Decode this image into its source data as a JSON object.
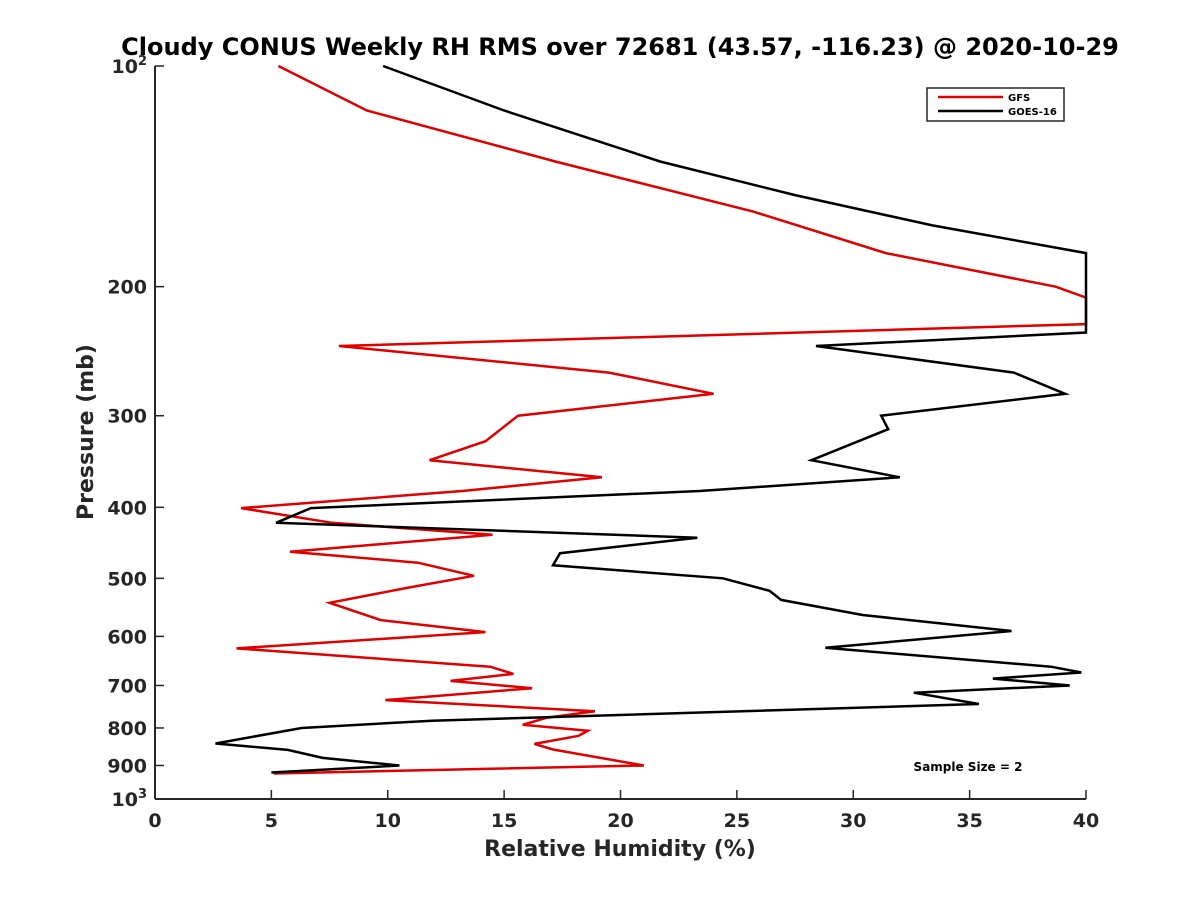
{
  "chart_data": {
    "type": "line",
    "title": "Cloudy CONUS Weekly RH RMS over 72681 (43.57, -116.23) @ 2020-10-29",
    "xlabel": "Relative Humidity (%)",
    "ylabel": "Pressure (mb)",
    "xlim": [
      0,
      40
    ],
    "ylim": [
      100,
      1000
    ],
    "y_scale": "log",
    "y_reversed": true,
    "grid": false,
    "x_ticks": [
      "0",
      "5",
      "10",
      "15",
      "20",
      "25",
      "30",
      "35",
      "40"
    ],
    "y_ticks": [
      {
        "value": 100,
        "base": "10",
        "exp": "2"
      },
      {
        "value": 200,
        "label": "200"
      },
      {
        "value": 300,
        "label": "300"
      },
      {
        "value": 400,
        "label": "400"
      },
      {
        "value": 500,
        "label": "500"
      },
      {
        "value": 600,
        "label": "600"
      },
      {
        "value": 700,
        "label": "700"
      },
      {
        "value": 800,
        "label": "800"
      },
      {
        "value": 900,
        "label": "900"
      },
      {
        "value": 1000,
        "base": "10",
        "exp": "3"
      }
    ],
    "legend": {
      "position": "top-right"
    },
    "annotation": "Sample Size = 2",
    "series": [
      {
        "name": "GFS",
        "color": "#e00000",
        "points": [
          [
            5.3,
            100
          ],
          [
            9.1,
            115
          ],
          [
            17.2,
            135
          ],
          [
            25.7,
            158
          ],
          [
            31.4,
            180
          ],
          [
            38.7,
            200
          ],
          [
            40.0,
            207
          ],
          [
            40.0,
            225
          ],
          [
            7.9,
            241
          ],
          [
            19.5,
            262
          ],
          [
            24.0,
            280
          ],
          [
            15.6,
            300
          ],
          [
            14.2,
            325
          ],
          [
            11.8,
            345
          ],
          [
            19.2,
            364
          ],
          [
            13.2,
            380
          ],
          [
            3.7,
            401
          ],
          [
            7.6,
            420
          ],
          [
            14.5,
            436
          ],
          [
            5.8,
            460
          ],
          [
            11.3,
            476
          ],
          [
            13.7,
            496
          ],
          [
            11.0,
            514
          ],
          [
            7.5,
            540
          ],
          [
            9.7,
            570
          ],
          [
            14.2,
            592
          ],
          [
            3.5,
            623
          ],
          [
            14.4,
            660
          ],
          [
            15.4,
            675
          ],
          [
            12.7,
            690
          ],
          [
            16.2,
            706
          ],
          [
            9.9,
            733
          ],
          [
            18.9,
            759
          ],
          [
            16.8,
            775
          ],
          [
            15.8,
            792
          ],
          [
            18.6,
            807
          ],
          [
            18.2,
            820
          ],
          [
            16.3,
            841
          ],
          [
            17.1,
            856
          ],
          [
            21.0,
            900
          ],
          [
            5.1,
            923
          ]
        ]
      },
      {
        "name": "GOES-16",
        "color": "#000000",
        "points": [
          [
            9.8,
            100
          ],
          [
            15.0,
            115
          ],
          [
            21.7,
            135
          ],
          [
            27.5,
            150
          ],
          [
            33.4,
            165
          ],
          [
            40.0,
            180
          ],
          [
            40.0,
            231
          ],
          [
            28.4,
            241
          ],
          [
            36.9,
            262
          ],
          [
            39.1,
            280
          ],
          [
            31.2,
            300
          ],
          [
            31.5,
            313
          ],
          [
            28.2,
            345
          ],
          [
            32.0,
            364
          ],
          [
            23.4,
            380
          ],
          [
            6.7,
            401
          ],
          [
            5.2,
            420
          ],
          [
            23.3,
            440
          ],
          [
            17.4,
            462
          ],
          [
            17.1,
            480
          ],
          [
            24.4,
            500
          ],
          [
            26.4,
            520
          ],
          [
            26.9,
            535
          ],
          [
            30.4,
            561
          ],
          [
            36.8,
            590
          ],
          [
            28.8,
            622
          ],
          [
            38.5,
            660
          ],
          [
            39.8,
            672
          ],
          [
            36.0,
            685
          ],
          [
            39.3,
            700
          ],
          [
            32.6,
            716
          ],
          [
            35.4,
            742
          ],
          [
            11.9,
            782
          ],
          [
            6.3,
            800
          ],
          [
            2.6,
            840
          ],
          [
            5.7,
            857
          ],
          [
            7.2,
            879
          ],
          [
            10.5,
            900
          ],
          [
            5.0,
            920
          ]
        ]
      }
    ]
  }
}
